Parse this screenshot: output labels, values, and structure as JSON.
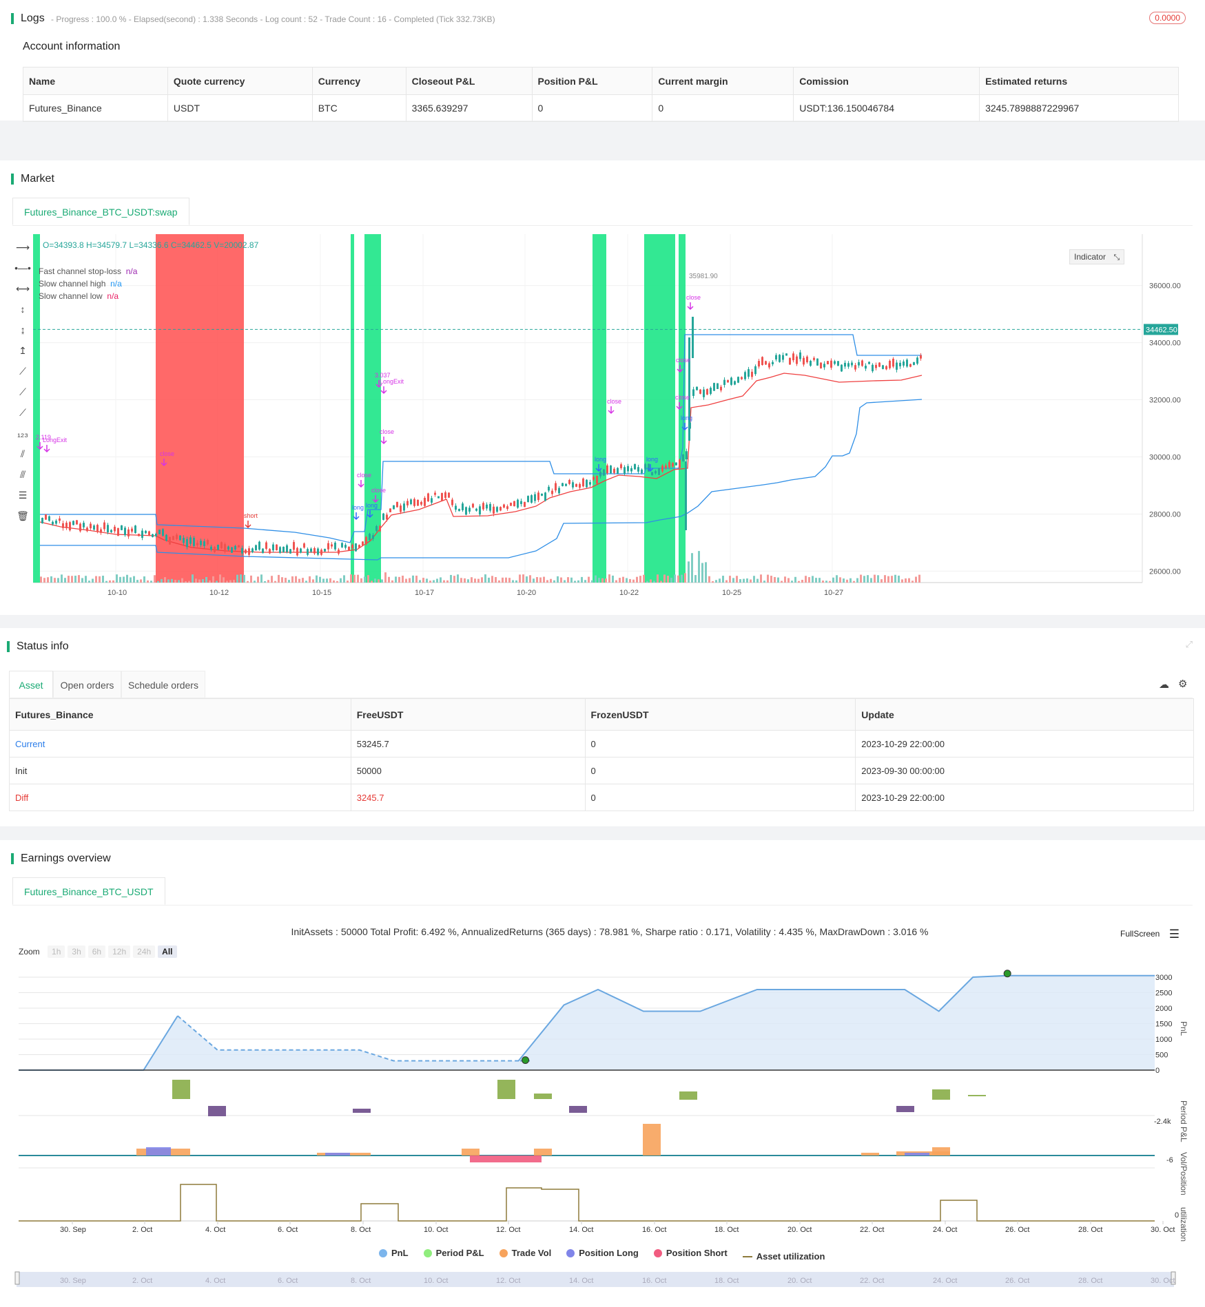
{
  "logs": {
    "title": "Logs",
    "status": "- Progress : 100.0 % - Elapsed(second) : 1.338  Seconds - Log count : 52 - Trade Count : 16 - Completed (Tick 332.73KB)",
    "badge": "0.0000"
  },
  "account": {
    "title": "Account information",
    "headers": [
      "Name",
      "Quote currency",
      "Currency",
      "Closeout P&L",
      "Position P&L",
      "Current margin",
      "Comission",
      "Estimated returns"
    ],
    "row": [
      "Futures_Binance",
      "USDT",
      "BTC",
      "3365.639297",
      "0",
      "0",
      "USDT:136.150046784",
      "3245.7898887229967"
    ]
  },
  "market": {
    "title": "Market",
    "tab": "Futures_Binance_BTC_USDT:swap",
    "ohlc": "O=34393.8 H=34579.7 L=34336.6 C=34462.5 V=20002.87",
    "legend": [
      {
        "label": "Fast channel stop-loss",
        "value": "n/a",
        "color": "#9c27b0"
      },
      {
        "label": "Slow channel high",
        "value": "n/a",
        "color": "#2196f3"
      },
      {
        "label": "Slow channel low",
        "value": "n/a",
        "color": "#e91e63"
      }
    ],
    "indicator_button": "Indicator",
    "price_label": "34462.50",
    "high_label": "35981.90",
    "y_ticks": [
      "36000.00",
      "34000.00",
      "32000.00",
      "30000.00",
      "28000.00",
      "26000.00"
    ],
    "x_ticks": [
      "10-10",
      "10-12",
      "10-15",
      "10-17",
      "10-20",
      "10-22",
      "10-25",
      "10-27"
    ],
    "annotations": [
      "2.119",
      "LongExit",
      "close",
      "short",
      "close",
      "close",
      "long",
      "long",
      "3.037",
      "LongExit",
      "close",
      "close",
      "long",
      "long",
      "close",
      "close",
      "long",
      "close"
    ],
    "icons": [
      "horizontal-line-icon",
      "ray-icon",
      "extended-line-icon",
      "vertical-line-icon",
      "cross-line-icon",
      "arrow-vertical-icon",
      "trend-line-icon",
      "trend-angle-icon",
      "info-line-icon",
      "price-label-icon",
      "parallel-channel-icon",
      "pitchfork-icon",
      "fib-retracement-icon",
      "trash-icon"
    ]
  },
  "status": {
    "title": "Status info",
    "tabs": [
      "Asset",
      "Open orders",
      "Schedule orders"
    ],
    "headers": [
      "Futures_Binance",
      "FreeUSDT",
      "FrozenUSDT",
      "Update"
    ],
    "rows": [
      {
        "name": "Current",
        "free": "53245.7",
        "frozen": "0",
        "update": "2023-10-29 22:00:00",
        "color": "#2b7de9",
        "freeColor": "#333"
      },
      {
        "name": "Init",
        "free": "50000",
        "frozen": "0",
        "update": "2023-09-30 00:00:00",
        "color": "#333",
        "freeColor": "#333"
      },
      {
        "name": "Diff",
        "free": "3245.7",
        "frozen": "0",
        "update": "2023-10-29 22:00:00",
        "color": "#e53935",
        "freeColor": "#e53935"
      }
    ]
  },
  "earnings": {
    "title": "Earnings overview",
    "tab": "Futures_Binance_BTC_USDT",
    "summary": "InitAssets : 50000 Total Profit: 6.492 %, AnnualizedReturns (365 days) : 78.981 %, Sharpe ratio : 0.171, Volatility : 4.435 %, MaxDrawDown : 3.016 %",
    "fullscreen": "FullScreen",
    "zoom_label": "Zoom",
    "zoom_buttons": [
      "1h",
      "3h",
      "6h",
      "12h",
      "24h",
      "All"
    ],
    "pnl_ticks": [
      "3000",
      "2500",
      "2000",
      "1500",
      "1000",
      "500",
      "0"
    ],
    "axis_labels": [
      "PnL",
      "Period P&L",
      "Vol/Position",
      "utilization"
    ],
    "period_min": "-2.4k",
    "vol_min": "-6",
    "util_zero": "0",
    "x_ticks": [
      "30. Sep",
      "2. Oct",
      "4. Oct",
      "6. Oct",
      "8. Oct",
      "10. Oct",
      "12. Oct",
      "14. Oct",
      "16. Oct",
      "18. Oct",
      "20. Oct",
      "22. Oct",
      "24. Oct",
      "26. Oct",
      "28. Oct",
      "30. Oct"
    ],
    "legend": [
      {
        "label": "PnL",
        "color": "#7cb5ec",
        "shape": "dot"
      },
      {
        "label": "Period P&L",
        "color": "#90ed7d",
        "shape": "dot"
      },
      {
        "label": "Trade Vol",
        "color": "#f7a35c",
        "shape": "dot"
      },
      {
        "label": "Position Long",
        "color": "#8085e9",
        "shape": "dot"
      },
      {
        "label": "Position Short",
        "color": "#f15c80",
        "shape": "dot"
      },
      {
        "label": "Asset utilization",
        "color": "#8d7a3a",
        "shape": "line"
      }
    ],
    "pnl_series": [
      [
        0,
        0
      ],
      [
        0.11,
        0
      ],
      [
        0.14,
        1750
      ],
      [
        0.175,
        650
      ],
      [
        0.3,
        650
      ],
      [
        0.33,
        300
      ],
      [
        0.4,
        300
      ],
      [
        0.45,
        300
      ],
      [
        0.44,
        300
      ],
      [
        0.48,
        2100
      ],
      [
        0.51,
        2600
      ],
      [
        0.55,
        1900
      ],
      [
        0.6,
        1900
      ],
      [
        0.65,
        2600
      ],
      [
        0.78,
        2600
      ],
      [
        0.81,
        1900
      ],
      [
        0.84,
        3000
      ],
      [
        0.87,
        3050
      ],
      [
        1,
        3050
      ]
    ]
  }
}
